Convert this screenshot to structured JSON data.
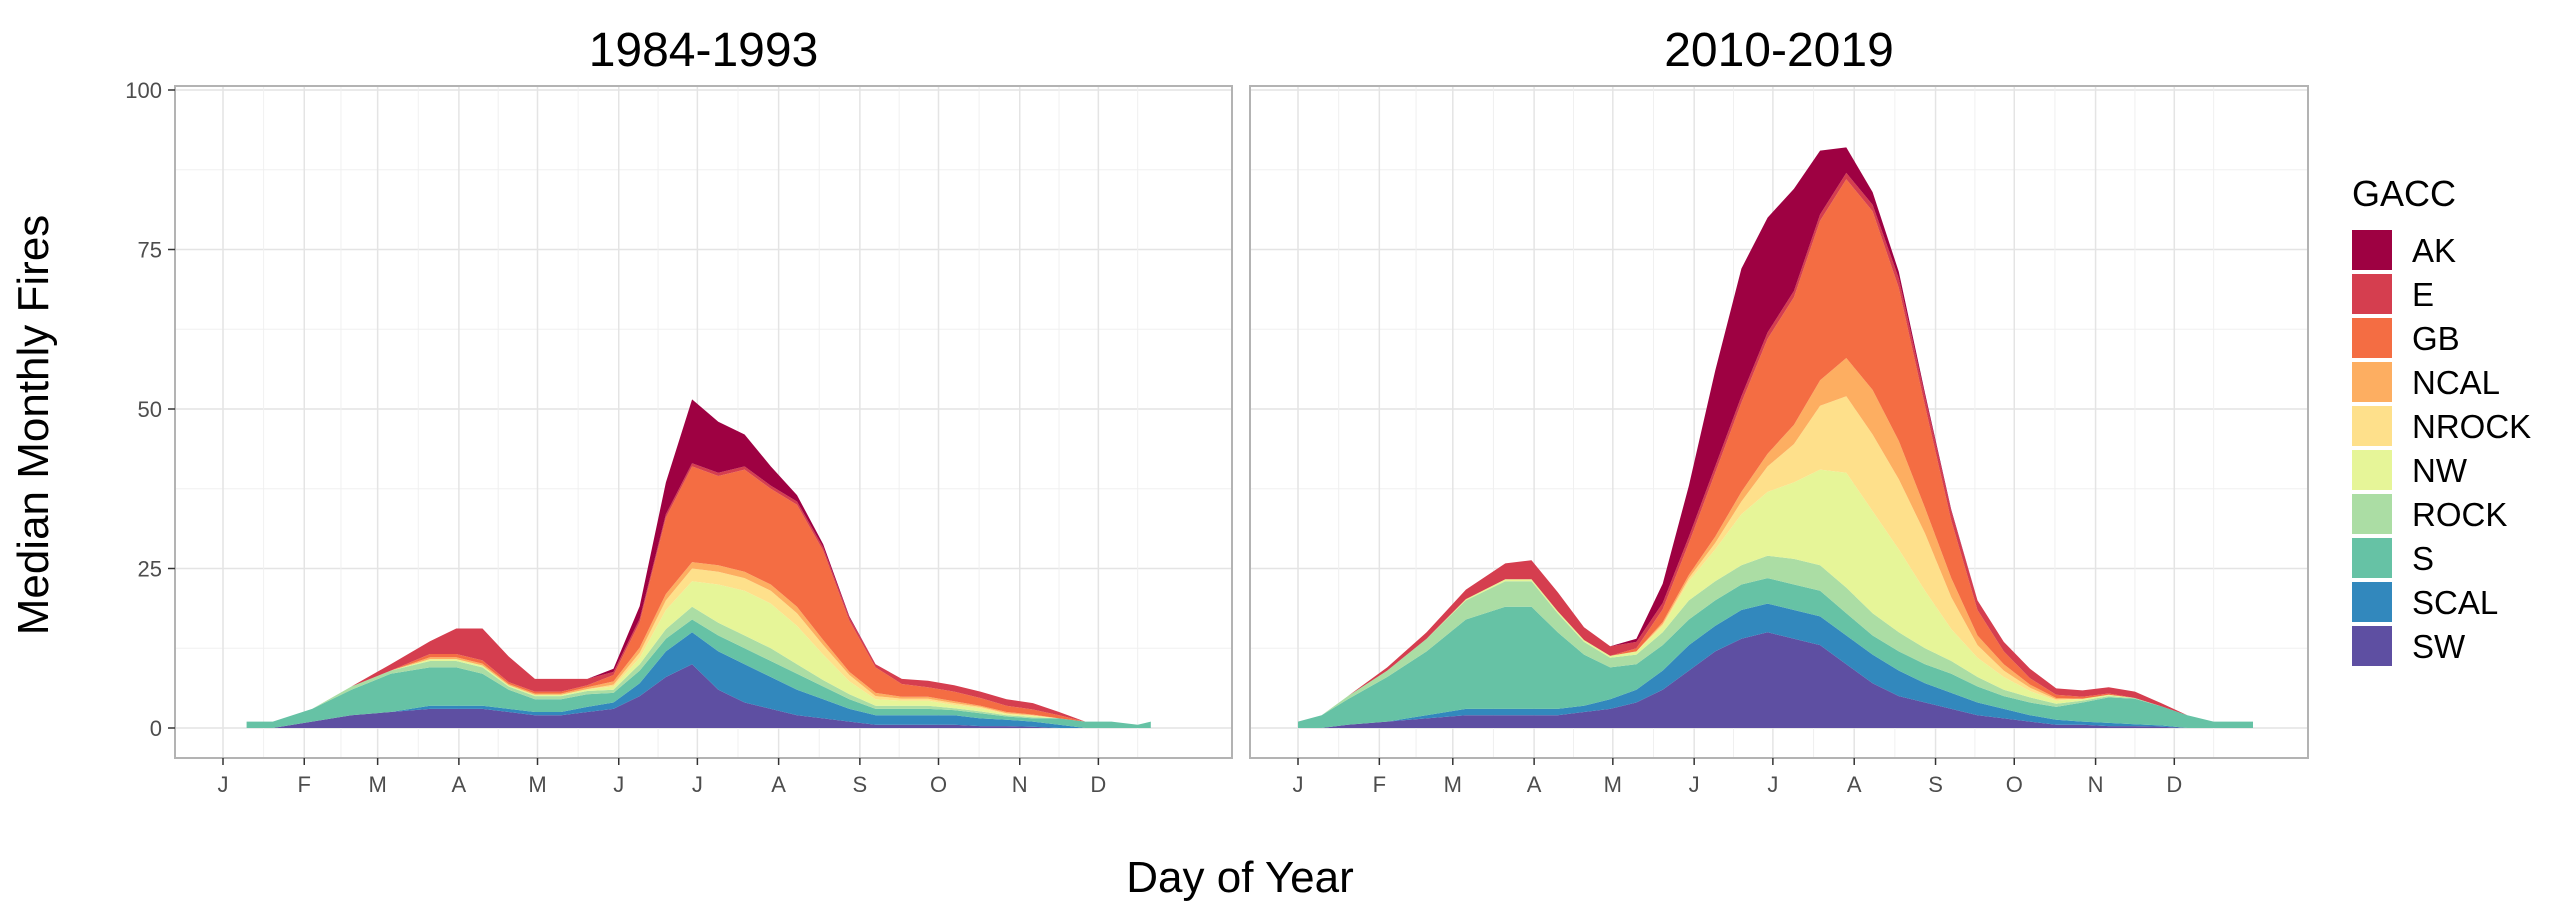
{
  "chart_data": {
    "type": "area",
    "stacked": true,
    "ylabel": "Median Monthly Fires",
    "xlabel": "Day of Year",
    "ylim": [
      0,
      100
    ],
    "yticks": [
      0,
      25,
      50,
      75,
      100
    ],
    "xlim": [
      1,
      365
    ],
    "xticks": [
      {
        "label": "J",
        "day": 1
      },
      {
        "label": "F",
        "day": 32
      },
      {
        "label": "M",
        "day": 60
      },
      {
        "label": "A",
        "day": 91
      },
      {
        "label": "M",
        "day": 121
      },
      {
        "label": "J",
        "day": 152
      },
      {
        "label": "J",
        "day": 182
      },
      {
        "label": "A",
        "day": 213
      },
      {
        "label": "S",
        "day": 244
      },
      {
        "label": "O",
        "day": 274
      },
      {
        "label": "N",
        "day": 305
      },
      {
        "label": "D",
        "day": 335
      }
    ],
    "grid": true,
    "legend": {
      "title": "GACC",
      "position": "right",
      "entries": [
        "AK",
        "E",
        "GB",
        "NCAL",
        "NROCK",
        "NW",
        "ROCK",
        "S",
        "SCAL",
        "SW"
      ]
    },
    "colors": {
      "AK": "#9E0142",
      "E": "#D53E4F",
      "GB": "#F46D43",
      "NCAL": "#FDAE61",
      "NROCK": "#FEE08B",
      "NW": "#E6F598",
      "ROCK": "#ABDDA4",
      "S": "#66C2A5",
      "SCAL": "#3288BD",
      "SW": "#5E4FA2"
    },
    "panels": [
      {
        "title": "1984-1993",
        "x": [
          10,
          20,
          35,
          50,
          65,
          80,
          90,
          100,
          110,
          120,
          130,
          140,
          150,
          160,
          170,
          180,
          190,
          200,
          210,
          220,
          230,
          240,
          250,
          260,
          270,
          280,
          290,
          300,
          310,
          320,
          330,
          340,
          350,
          355
        ],
        "series": [
          {
            "name": "SW",
            "values": [
              0,
              0,
              1,
              2,
              2.5,
              3,
              3,
              3,
              2.5,
              2,
              2,
              2.5,
              3,
              5,
              8,
              10,
              6,
              4,
              3,
              2,
              1.5,
              1,
              0.5,
              0.5,
              0.5,
              0.5,
              0.3,
              0.3,
              0.2,
              0,
              0,
              0,
              0,
              0
            ]
          },
          {
            "name": "SCAL",
            "values": [
              0,
              0,
              0,
              0,
              0,
              0.5,
              0.5,
              0.5,
              0.5,
              0.5,
              0.5,
              0.8,
              1,
              2,
              4,
              5,
              6,
              6,
              5,
              4,
              3,
              2,
              1.5,
              1.5,
              1.5,
              1.5,
              1.2,
              1,
              0.8,
              0.5,
              0,
              0,
              0,
              0
            ]
          },
          {
            "name": "S",
            "values": [
              1,
              1,
              2,
              4,
              6,
              6,
              6,
              5,
              3,
              2,
              2,
              2,
              1.5,
              2,
              2,
              2,
              2.5,
              2.5,
              2.5,
              2.5,
              2,
              1.5,
              1,
              1,
              1,
              0.8,
              0.8,
              0.5,
              0.5,
              1,
              1,
              1,
              0.5,
              1
            ]
          },
          {
            "name": "ROCK",
            "values": [
              0,
              0,
              0,
              0.5,
              0.5,
              1,
              1,
              1,
              0.5,
              0.5,
              0.5,
              0.5,
              0.5,
              1,
              1.5,
              2,
              2,
              2,
              2,
              1.5,
              1,
              0.8,
              0.5,
              0.5,
              0.5,
              0.3,
              0.3,
              0.2,
              0.2,
              0,
              0,
              0,
              0,
              0
            ]
          },
          {
            "name": "NW",
            "values": [
              0,
              0,
              0,
              0,
              0,
              0.3,
              0.3,
              0.3,
              0.2,
              0.2,
              0.2,
              0.3,
              0.5,
              1,
              3,
              4,
              6,
              7,
              7,
              6,
              4,
              2,
              1,
              0.8,
              0.8,
              0.5,
              0.5,
              0.2,
              0.2,
              0,
              0,
              0,
              0,
              0
            ]
          },
          {
            "name": "NROCK",
            "values": [
              0,
              0,
              0,
              0,
              0,
              0,
              0,
              0,
              0,
              0,
              0,
              0,
              0.3,
              0.8,
              1.5,
              2,
              2,
              2,
              2,
              2,
              1.5,
              1,
              0.5,
              0.3,
              0.3,
              0.3,
              0.2,
              0.1,
              0.1,
              0,
              0,
              0,
              0,
              0
            ]
          },
          {
            "name": "NCAL",
            "values": [
              0,
              0,
              0,
              0,
              0,
              0.3,
              0.3,
              0.3,
              0.2,
              0.2,
              0.2,
              0.3,
              0.5,
              0.8,
              1,
              1,
              1,
              1,
              1,
              1,
              0.8,
              0.5,
              0.5,
              0.3,
              0.3,
              0.3,
              0.2,
              0.2,
              0.1,
              0,
              0,
              0,
              0,
              0
            ]
          },
          {
            "name": "GB",
            "values": [
              0,
              0,
              0,
              0,
              0,
              0.5,
              0.5,
              0.5,
              0.3,
              0.3,
              0.3,
              0.3,
              1,
              4,
              12,
              15,
              14,
              16,
              15,
              16,
              14,
              8,
              4,
              2,
              1.5,
              1.5,
              1.2,
              1,
              0.8,
              0.5,
              0,
              0,
              0,
              0
            ]
          },
          {
            "name": "E",
            "values": [
              0,
              0,
              0,
              0,
              1,
              2,
              4,
              5,
              4,
              2,
              2,
              1,
              0.5,
              0.5,
              0.5,
              0.5,
              0.5,
              0.5,
              0.5,
              0.5,
              0.5,
              0.5,
              0.5,
              0.8,
              1,
              1,
              1,
              1,
              1,
              0.5,
              0,
              0,
              0,
              0
            ]
          },
          {
            "name": "AK",
            "values": [
              0,
              0,
              0,
              0,
              0,
              0,
              0,
              0,
              0,
              0,
              0,
              0,
              0.5,
              2,
              5,
              10,
              8,
              5,
              3,
              1,
              0.5,
              0.2,
              0,
              0,
              0,
              0,
              0,
              0,
              0,
              0,
              0,
              0,
              0,
              0
            ]
          }
        ]
      },
      {
        "title": "2010-2019",
        "x": [
          1,
          10,
          20,
          35,
          50,
          65,
          80,
          90,
          100,
          110,
          120,
          130,
          140,
          150,
          160,
          170,
          180,
          190,
          200,
          210,
          220,
          230,
          240,
          250,
          260,
          270,
          280,
          290,
          300,
          310,
          320,
          330,
          340,
          350,
          360,
          365
        ],
        "series": [
          {
            "name": "SW",
            "values": [
              0,
              0,
              0.5,
              1,
              1.5,
              2,
              2,
              2,
              2,
              2.5,
              3,
              4,
              6,
              9,
              12,
              14,
              15,
              14,
              13,
              10,
              7,
              5,
              4,
              3,
              2,
              1.5,
              1,
              0.5,
              0.5,
              0.3,
              0.3,
              0.2,
              0,
              0,
              0,
              0
            ]
          },
          {
            "name": "SCAL",
            "values": [
              0,
              0,
              0,
              0,
              0.5,
              1,
              1,
              1,
              1,
              1,
              1.5,
              2,
              3,
              4,
              4,
              4.5,
              4.5,
              4.5,
              4.5,
              4.5,
              4.5,
              4,
              3,
              2.5,
              2,
              1.5,
              1,
              0.8,
              0.5,
              0.5,
              0.3,
              0.2,
              0,
              0,
              0,
              0
            ]
          },
          {
            "name": "S",
            "values": [
              1,
              2,
              4,
              7,
              10,
              14,
              16,
              16,
              12,
              8,
              5,
              4,
              4,
              4,
              4,
              4,
              4,
              4,
              4,
              3.5,
              3,
              3,
              3,
              3,
              2.5,
              2,
              2,
              2,
              3,
              4,
              4,
              3,
              2,
              1,
              1,
              1
            ]
          },
          {
            "name": "ROCK",
            "values": [
              0,
              0,
              0.5,
              1,
              2,
              3,
              4,
              4,
              3,
              2,
              1.5,
              1.5,
              2,
              3,
              3,
              3,
              3.5,
              4,
              4,
              4,
              3.5,
              3,
              2.5,
              2,
              1.5,
              1,
              0.8,
              0.5,
              0.3,
              0.2,
              0.1,
              0,
              0,
              0,
              0,
              0
            ]
          },
          {
            "name": "NW",
            "values": [
              0,
              0,
              0,
              0,
              0,
              0.2,
              0.3,
              0.3,
              0.3,
              0.3,
              0.3,
              0.5,
              1,
              3,
              5,
              8,
              10,
              12,
              15,
              18,
              16,
              13,
              9,
              5,
              3,
              2,
              1,
              0.5,
              0.3,
              0.2,
              0,
              0,
              0,
              0,
              0,
              0
            ]
          },
          {
            "name": "NROCK",
            "values": [
              0,
              0,
              0,
              0,
              0,
              0,
              0,
              0,
              0,
              0,
              0,
              0,
              0.3,
              0.5,
              1,
              2,
              4,
              6,
              10,
              12,
              12,
              11,
              9,
              5,
              2,
              1,
              0.5,
              0.2,
              0,
              0,
              0,
              0,
              0,
              0,
              0,
              0
            ]
          },
          {
            "name": "NCAL",
            "values": [
              0,
              0,
              0,
              0,
              0,
              0,
              0,
              0,
              0,
              0,
              0,
              0,
              0.3,
              0.5,
              1,
              1.5,
              2,
              3,
              4,
              6,
              7,
              6,
              4,
              3,
              1.5,
              1,
              0.5,
              0.2,
              0,
              0,
              0,
              0,
              0,
              0,
              0,
              0
            ]
          },
          {
            "name": "GB",
            "values": [
              0,
              0,
              0,
              0,
              0,
              0,
              0,
              0,
              0,
              0,
              0,
              0.5,
              2,
              5,
              10,
              14,
              18,
              20,
              25,
              28,
              28,
              24,
              16,
              9,
              4,
              2,
              1,
              0.5,
              0.3,
              0.2,
              0,
              0,
              0,
              0,
              0,
              0
            ]
          },
          {
            "name": "E",
            "values": [
              0,
              0,
              0,
              0.5,
              1,
              1.5,
              2.5,
              3,
              3,
              2,
              1.5,
              1,
              1,
              1,
              1,
              1,
              1,
              1,
              1,
              1,
              1,
              1.5,
              1.5,
              1.5,
              1.5,
              1.5,
              1.5,
              1,
              1,
              1,
              1,
              0.5,
              0,
              0,
              0,
              0
            ]
          },
          {
            "name": "AK",
            "values": [
              0,
              0,
              0,
              0,
              0,
              0,
              0,
              0,
              0,
              0,
              0,
              0.5,
              3,
              8,
              15,
              20,
              18,
              16,
              10,
              4,
              2,
              1,
              0.5,
              0.2,
              0,
              0,
              0,
              0,
              0,
              0,
              0,
              0,
              0,
              0,
              0,
              0
            ]
          }
        ]
      }
    ]
  }
}
